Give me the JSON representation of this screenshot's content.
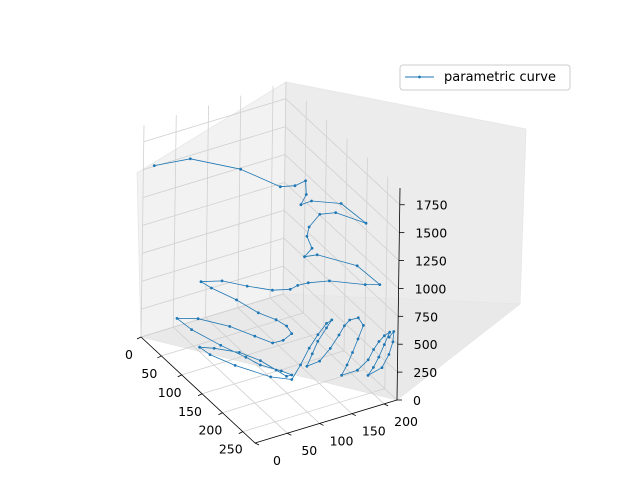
{
  "chart_data": {
    "type": "line3d",
    "title": "",
    "xlabel": "",
    "ylabel": "",
    "zlabel": "",
    "xlim": [
      0,
      280
    ],
    "ylim": [
      0,
      220
    ],
    "zlim": [
      0,
      1900
    ],
    "x_ticks": [
      "0",
      "50",
      "100",
      "150",
      "200",
      "250"
    ],
    "y_ticks": [
      "0",
      "50",
      "100",
      "150",
      "200"
    ],
    "z_ticks": [
      "0",
      "250",
      "500",
      "750",
      "1000",
      "1250",
      "1500",
      "1750"
    ],
    "x_tick_values": [
      0,
      50,
      100,
      150,
      200,
      250
    ],
    "y_tick_values": [
      0,
      50,
      100,
      150,
      200
    ],
    "z_tick_values": [
      0,
      250,
      500,
      750,
      1000,
      1250,
      1500,
      1750
    ],
    "legend": {
      "label": "parametric curve",
      "location": "top-right"
    },
    "series": [
      {
        "name": "parametric curve",
        "color": "#1f77b4",
        "marker": "point",
        "points": [
          [
            3,
            15,
            1520
          ],
          [
            20,
            60,
            1560
          ],
          [
            80,
            100,
            1600
          ],
          [
            130,
            130,
            1560
          ],
          [
            150,
            140,
            1620
          ],
          [
            160,
            150,
            1680
          ],
          [
            170,
            145,
            1600
          ],
          [
            165,
            140,
            1500
          ],
          [
            175,
            150,
            1550
          ],
          [
            200,
            180,
            1560
          ],
          [
            230,
            200,
            1450
          ],
          [
            195,
            175,
            1470
          ],
          [
            180,
            160,
            1430
          ],
          [
            170,
            150,
            1300
          ],
          [
            165,
            150,
            1200
          ],
          [
            170,
            155,
            1100
          ],
          [
            160,
            150,
            1000
          ],
          [
            175,
            160,
            1050
          ],
          [
            210,
            200,
            1000
          ],
          [
            250,
            210,
            950
          ],
          [
            230,
            200,
            900
          ],
          [
            190,
            170,
            850
          ],
          [
            170,
            150,
            800
          ],
          [
            160,
            140,
            760
          ],
          [
            150,
            135,
            700
          ],
          [
            130,
            120,
            650
          ],
          [
            100,
            100,
            620
          ],
          [
            70,
            80,
            600
          ],
          [
            50,
            60,
            560
          ],
          [
            60,
            70,
            520
          ],
          [
            90,
            90,
            480
          ],
          [
            120,
            105,
            440
          ],
          [
            140,
            120,
            420
          ],
          [
            150,
            130,
            380
          ],
          [
            155,
            135,
            320
          ],
          [
            150,
            125,
            260
          ],
          [
            140,
            115,
            220
          ],
          [
            120,
            100,
            240
          ],
          [
            90,
            80,
            260
          ],
          [
            60,
            50,
            280
          ],
          [
            40,
            30,
            250
          ],
          [
            60,
            40,
            200
          ],
          [
            100,
            60,
            160
          ],
          [
            130,
            80,
            120
          ],
          [
            150,
            90,
            100
          ],
          [
            170,
            110,
            80
          ],
          [
            180,
            120,
            60
          ],
          [
            175,
            115,
            40
          ],
          [
            165,
            105,
            80
          ],
          [
            150,
            90,
            140
          ],
          [
            130,
            70,
            180
          ],
          [
            100,
            50,
            150
          ],
          [
            80,
            40,
            110
          ],
          [
            90,
            50,
            60
          ],
          [
            120,
            70,
            30
          ],
          [
            160,
            100,
            10
          ],
          [
            180,
            120,
            20
          ],
          [
            185,
            130,
            150
          ],
          [
            190,
            140,
            300
          ],
          [
            195,
            150,
            420
          ],
          [
            200,
            160,
            520
          ],
          [
            205,
            165,
            560
          ],
          [
            200,
            160,
            480
          ],
          [
            195,
            150,
            360
          ],
          [
            190,
            145,
            240
          ],
          [
            185,
            140,
            120
          ],
          [
            200,
            150,
            200
          ],
          [
            210,
            160,
            330
          ],
          [
            215,
            170,
            450
          ],
          [
            220,
            175,
            540
          ],
          [
            225,
            180,
            600
          ],
          [
            230,
            190,
            620
          ],
          [
            235,
            195,
            560
          ],
          [
            230,
            190,
            430
          ],
          [
            225,
            185,
            300
          ],
          [
            220,
            180,
            180
          ],
          [
            215,
            175,
            80
          ],
          [
            230,
            190,
            150
          ],
          [
            240,
            200,
            260
          ],
          [
            245,
            205,
            360
          ],
          [
            250,
            210,
            440
          ],
          [
            255,
            215,
            500
          ],
          [
            260,
            220,
            540
          ],
          [
            255,
            215,
            420
          ],
          [
            250,
            210,
            300
          ],
          [
            245,
            205,
            200
          ],
          [
            240,
            200,
            120
          ],
          [
            255,
            212,
            220
          ],
          [
            262,
            218,
            350
          ],
          [
            268,
            220,
            480
          ],
          [
            270,
            220,
            580
          ],
          [
            265,
            216,
            520
          ]
        ]
      }
    ]
  }
}
